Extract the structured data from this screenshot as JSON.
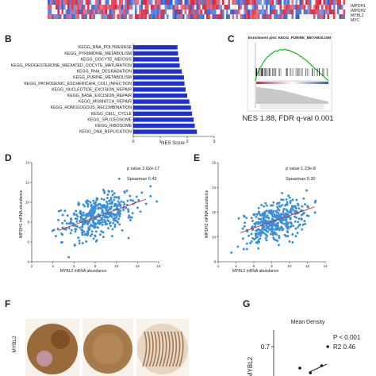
{
  "heatmap_top": {
    "row_labels": [
      "IMPDH1",
      "IMPDH2",
      "MYBL2",
      "MYC"
    ],
    "colors": {
      "high": "#d7263d",
      "low": "#2a5bd7",
      "mid": "#f2f2f2"
    }
  },
  "panels": {
    "B": "B",
    "C": "C",
    "D": "D",
    "E": "E",
    "F": "F",
    "G": "G"
  },
  "panel_b": {
    "chart_data": {
      "type": "bar",
      "orientation": "horizontal",
      "categories": [
        "KEGG_RNA_POLYMERASE",
        "KEGG_PYRIMIDINE_METABOLISM",
        "KEGG_OOCYTE_MEIOSIS",
        "KEGG_PROGESTERONE_MEDIATED_OOCYTE_MATURATION",
        "KEGG_RNA_DEGRADATION",
        "KEGG_PURINE_METABOLISM",
        "KEGG_PATHOGENIC_ESCHERICHIA_COLI_INFECTION",
        "KEGG_NUCLEOTIDE_EXCISION_REPAIR",
        "KEGG_BASE_EXCISION_REPAIR",
        "KEGG_MISMATCH_REPAIR",
        "KEGG_HOMOLOGOUS_RECOMBINATION",
        "KEGG_CELL_CYCLE",
        "KEGG_SPLICEOSOME",
        "KEGG_RIBOSOME",
        "KEGG_DNA_REPLICATION"
      ],
      "values": [
        1.64,
        1.66,
        1.7,
        1.72,
        1.8,
        1.88,
        1.9,
        1.94,
        2.0,
        2.08,
        2.14,
        2.18,
        2.24,
        2.28,
        2.36
      ],
      "xlabel": "NES Score",
      "xlim": [
        0,
        3
      ],
      "xticks": [
        "0",
        "1",
        "2",
        "3"
      ],
      "bar_color": "#1f2fd6"
    }
  },
  "panel_c": {
    "title": "Enrichment plot: KEGG_PURINE_METABOLISM",
    "caption": "NES 1.88, FDR q-val 0.001",
    "curve_color": "#22c12a"
  },
  "panel_d": {
    "stats": {
      "p": "p value 3.62e-17",
      "spearman": "Spearman 0.43"
    },
    "chart_data": {
      "type": "scatter",
      "xlabel": "MYBL2 mRNA abundance",
      "ylabel": "IMPDH1 mRNA abundance",
      "xlim": [
        2,
        14
      ],
      "ylim": [
        4,
        14
      ],
      "xticks": [
        "2",
        "4",
        "6",
        "8",
        "10",
        "12",
        "14"
      ],
      "yticks": [
        "4",
        "6",
        "8",
        "10",
        "12",
        "14"
      ],
      "point_color": "#3b8fd8",
      "fit_color": "#c0392b"
    }
  },
  "panel_e": {
    "stats": {
      "p": "p value 1.23e-8",
      "spearman": "Spearman 0.30"
    },
    "chart_data": {
      "type": "scatter",
      "xlabel": "MYBL2 mRNA abundance",
      "ylabel": "IMPDH2 mRNA abundance",
      "xlim": [
        2,
        14
      ],
      "ylim": [
        8,
        16
      ],
      "xticks": [
        "2",
        "4",
        "6",
        "8",
        "10",
        "12",
        "14"
      ],
      "yticks": [
        "8",
        "10",
        "12",
        "14",
        "16"
      ],
      "point_color": "#3b8fd8",
      "fit_color": "#c0392b"
    }
  },
  "panel_f": {
    "row_label": "MYBL2",
    "stain_color": "#8a5a2e"
  },
  "panel_g": {
    "title": "Mean Density",
    "stats": {
      "p": "P < 0.001",
      "r2": "R2 0.46"
    },
    "ylabel": "MYBL2",
    "ytick": "0.7",
    "chart_data": {
      "type": "scatter",
      "points": [
        [
          0.3,
          0.655
        ],
        [
          0.42,
          0.645
        ],
        [
          0.55,
          0.66
        ],
        [
          0.62,
          0.7
        ]
      ]
    }
  }
}
